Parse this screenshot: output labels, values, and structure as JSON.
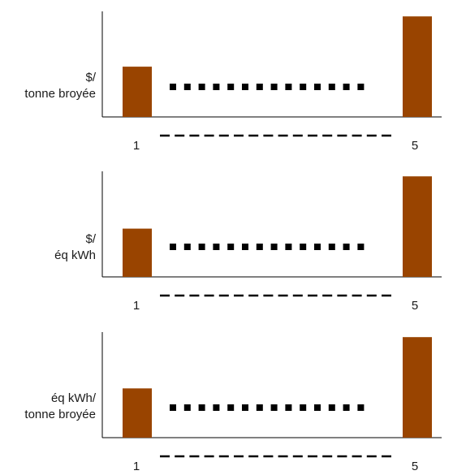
{
  "chart_data": [
    {
      "type": "bar",
      "ylabel_lines": [
        "$/",
        "tonne broyée"
      ],
      "categories": [
        "1",
        "5"
      ],
      "values": [
        0.5,
        1.0
      ],
      "ylim": [
        0,
        1.05
      ],
      "bar_color": "#994400",
      "grid": false,
      "legend": "none"
    },
    {
      "type": "bar",
      "ylabel_lines": [
        "$/",
        "éq kWh"
      ],
      "categories": [
        "1",
        "5"
      ],
      "values": [
        0.48,
        1.0
      ],
      "ylim": [
        0,
        1.05
      ],
      "bar_color": "#994400",
      "grid": false,
      "legend": "none"
    },
    {
      "type": "bar",
      "ylabel_lines": [
        "éq kWh/",
        "tonne broyée"
      ],
      "categories": [
        "1",
        "5"
      ],
      "values": [
        0.49,
        1.0
      ],
      "ylim": [
        0,
        1.05
      ],
      "bar_color": "#994400",
      "grid": false,
      "legend": "none"
    }
  ]
}
